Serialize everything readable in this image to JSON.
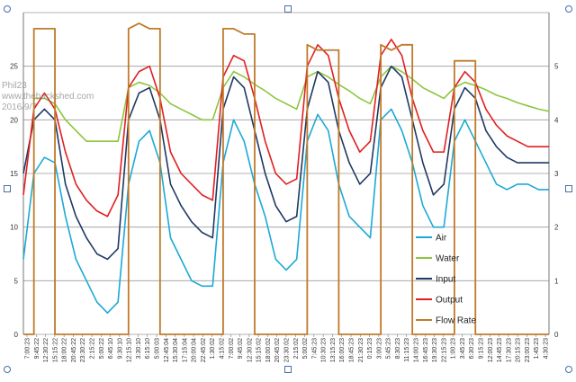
{
  "watermark": {
    "line1": "Phil23",
    "line2": "www.thebackshed.com",
    "line3": "2016/9/7"
  },
  "colors": {
    "Air": "#1aa9d6",
    "Water": "#8cc63e",
    "Input": "#1f3864",
    "Output": "#e11f1f",
    "Flow Rate": "#c07a2a",
    "grid": "#9a9a9a",
    "handle": "#4a6fa5"
  },
  "chart_data": {
    "type": "line",
    "title": "",
    "ylim": [
      0,
      30
    ],
    "yticks": [
      0,
      5,
      10,
      15,
      20,
      25
    ],
    "y2lim": [
      0,
      6
    ],
    "y2ticks": [
      0,
      1,
      2,
      3,
      4,
      5
    ],
    "grid": true,
    "legend_position": "bottom-right",
    "legend": [
      "Air",
      "Water",
      "Input",
      "Output",
      "Flow Rate"
    ],
    "x_tick_labels": [
      "7:00:23",
      "9:45:22",
      "12:30:22",
      "15:15:22",
      "18:00:22",
      "20:45:22",
      "23:30:22",
      "2:15:22",
      "5:00:22",
      "6:45:10",
      "9:30:10",
      "12:15:10",
      "3:30:10",
      "6:15:10",
      "5:00:03",
      "12:45:04",
      "15:30:04",
      "17:15:04",
      "20:00:04",
      "22:45:02",
      "1:30:02",
      "4:15:02",
      "7:00:02",
      "9:45:02",
      "12:30:02",
      "15:15:02",
      "18:00:02",
      "20:45:02",
      "23:30:02",
      "2:15:02",
      "5:00:02",
      "7:45:23",
      "10:30:23",
      "13:15:23",
      "16:00:23",
      "18:45:23",
      "21:30:23",
      "0:15:23",
      "3:00:23",
      "5:45:23",
      "8:30:23",
      "11:15:23",
      "14:00:23",
      "16:45:23",
      "19:30:23",
      "22:15:23",
      "1:00:23",
      "3:45:23",
      "6:30:23",
      "9:15:23",
      "12:00:23",
      "14:45:23",
      "17:30:23",
      "20:15:23",
      "23:00:23",
      "1:45:23",
      "4:30:23"
    ],
    "x": [
      0,
      2,
      4,
      6,
      8,
      10,
      12,
      14,
      16,
      18,
      20,
      22,
      24,
      26,
      28,
      30,
      32,
      34,
      36,
      38,
      40,
      42,
      44,
      46,
      48,
      50,
      52,
      54,
      56,
      58,
      60,
      62,
      64,
      66,
      68,
      70,
      72,
      74,
      76,
      78,
      80,
      82,
      84,
      86,
      88,
      90,
      92,
      94,
      96,
      98,
      100
    ],
    "series": [
      {
        "name": "Air",
        "axis": "left",
        "values": [
          7,
          15,
          16.5,
          16,
          11,
          7,
          5,
          3,
          2,
          3,
          14,
          18,
          19,
          16,
          9,
          7,
          5,
          4.5,
          4.5,
          16,
          20,
          18,
          14,
          11,
          7,
          6,
          7,
          18,
          20.5,
          19,
          14,
          11,
          10,
          9,
          20,
          21,
          19,
          16,
          12,
          10,
          10,
          18,
          20,
          18,
          16,
          14,
          13.5,
          14,
          14,
          13.5,
          13.5
        ]
      },
      {
        "name": "Water",
        "axis": "left",
        "values": [
          null,
          22,
          22,
          21.5,
          20,
          19,
          18,
          18,
          18,
          18,
          23,
          23.5,
          23.2,
          22.5,
          21.5,
          21,
          20.5,
          20,
          20,
          23,
          24.5,
          24,
          23.3,
          22.7,
          22,
          21.5,
          21,
          24,
          24.5,
          24,
          23.3,
          22.7,
          22,
          21.5,
          24,
          25,
          24.5,
          23.8,
          23,
          22.5,
          22,
          23,
          23.5,
          23.2,
          22.8,
          22.3,
          22,
          21.6,
          21.3,
          21,
          20.8
        ]
      },
      {
        "name": "Input",
        "axis": "left",
        "values": [
          15,
          20,
          21,
          20,
          14,
          11,
          9,
          7.5,
          7,
          8,
          20,
          22.5,
          23,
          20,
          14,
          12,
          10.5,
          9.5,
          9,
          21,
          24,
          23,
          19,
          15,
          12,
          10.5,
          11,
          21,
          24.5,
          23.5,
          19,
          16,
          14,
          15,
          23,
          25,
          24,
          20,
          16,
          13,
          14,
          21,
          23,
          22,
          19,
          17.5,
          16.5,
          16,
          16,
          16,
          16
        ]
      },
      {
        "name": "Output",
        "axis": "left",
        "values": [
          13,
          21,
          22.5,
          21,
          17,
          14,
          12.5,
          11.5,
          11,
          13,
          23,
          24.5,
          25,
          22,
          17,
          15,
          14,
          13,
          12.5,
          24,
          26,
          25.5,
          22,
          18,
          15,
          14,
          14.5,
          25,
          27,
          26,
          22,
          19,
          17,
          18,
          26,
          27.5,
          26,
          22,
          19,
          17,
          17,
          23,
          24.5,
          23.5,
          21,
          19.5,
          18.5,
          18,
          17.5,
          17.5,
          17.5
        ]
      },
      {
        "name": "Flow Rate",
        "axis": "right",
        "values": [
          0,
          5.7,
          5.7,
          0,
          0,
          0,
          0,
          0,
          0,
          0,
          5.7,
          5.8,
          5.7,
          0,
          0,
          0,
          0,
          0,
          0,
          5.7,
          5.7,
          5.6,
          0,
          0,
          0,
          0,
          0,
          5.4,
          5.3,
          5.3,
          0,
          0,
          0,
          0,
          5.4,
          5.3,
          5.4,
          0,
          0,
          0,
          0,
          5.1,
          5.1,
          0,
          0,
          0,
          0,
          0,
          0,
          0,
          0
        ]
      }
    ]
  }
}
